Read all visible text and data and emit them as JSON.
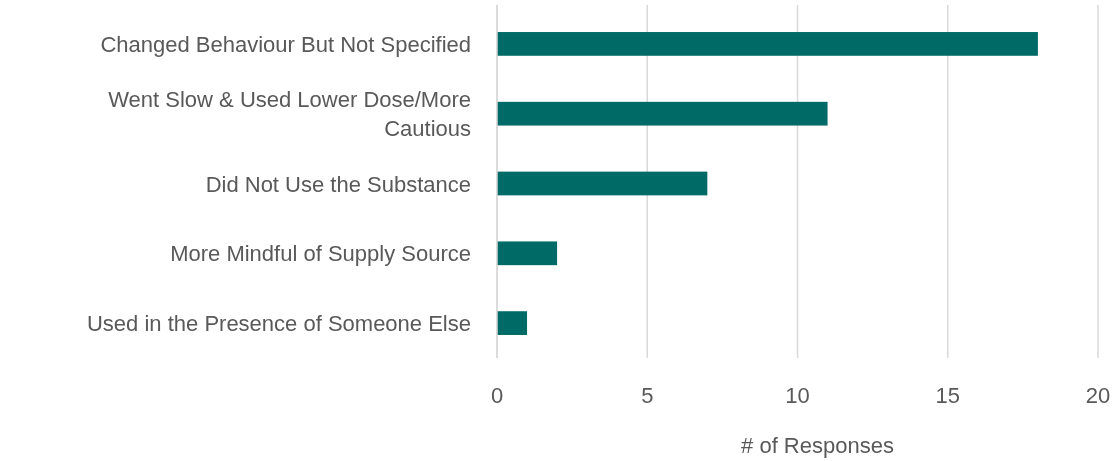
{
  "chart_data": {
    "type": "bar",
    "orientation": "horizontal",
    "categories": [
      "Changed Behaviour But Not Specified",
      "Went Slow & Used Lower Dose/More Cautious",
      "Did Not Use the Substance",
      "More Mindful of Supply Source",
      "Used in the Presence of Someone Else"
    ],
    "values": [
      18,
      11,
      7,
      2,
      1
    ],
    "color": "#006a66",
    "xlabel": "# of Responses",
    "xlim": [
      0,
      20
    ],
    "xticks": [
      0,
      5,
      10,
      15,
      20
    ],
    "grid": "x"
  }
}
